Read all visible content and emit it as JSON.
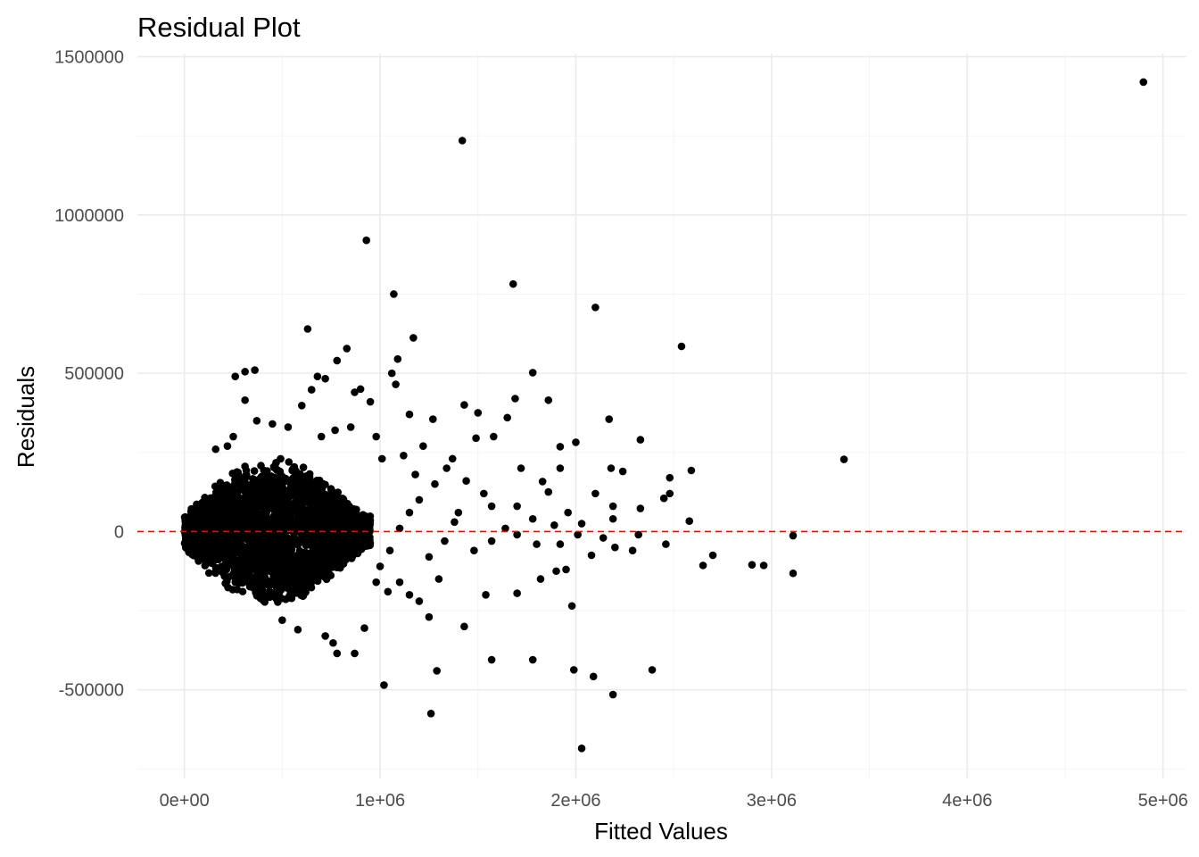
{
  "chart_data": {
    "type": "scatter",
    "title": "Residual Plot",
    "xlabel": "Fitted Values",
    "ylabel": "Residuals",
    "xlim": [
      -240000,
      5120000
    ],
    "ylim": [
      -780000,
      1510000
    ],
    "x_ticks": [
      0,
      1000000,
      2000000,
      3000000,
      4000000,
      5000000
    ],
    "x_tick_labels": [
      "0e+00",
      "1e+06",
      "2e+06",
      "3e+06",
      "4e+06",
      "5e+06"
    ],
    "y_ticks": [
      -500000,
      0,
      500000,
      1000000,
      1500000
    ],
    "y_tick_labels": [
      "-500000",
      "0",
      "500000",
      "1000000",
      "1500000"
    ],
    "grid": true,
    "point_color": "#000000",
    "reference_line": {
      "y": 0,
      "color": "#ff0000",
      "style": "dashed"
    },
    "dense_cloud": {
      "description_only_for_rendering": false,
      "x_range": [
        0,
        950000
      ],
      "y_range": [
        -230000,
        260000
      ],
      "center": [
        420000,
        0
      ]
    },
    "points": [
      [
        4900000,
        1420000
      ],
      [
        1420000,
        1235000
      ],
      [
        930000,
        920000
      ],
      [
        1070000,
        750000
      ],
      [
        1680000,
        782000
      ],
      [
        2100000,
        708000
      ],
      [
        2540000,
        585000
      ],
      [
        1170000,
        612000
      ],
      [
        630000,
        640000
      ],
      [
        830000,
        578000
      ],
      [
        1090000,
        545000
      ],
      [
        1780000,
        502000
      ],
      [
        1060000,
        500000
      ],
      [
        1080000,
        465000
      ],
      [
        360000,
        510000
      ],
      [
        310000,
        505000
      ],
      [
        260000,
        490000
      ],
      [
        680000,
        490000
      ],
      [
        720000,
        483000
      ],
      [
        780000,
        540000
      ],
      [
        870000,
        440000
      ],
      [
        900000,
        450000
      ],
      [
        650000,
        448000
      ],
      [
        310000,
        415000
      ],
      [
        1430000,
        400000
      ],
      [
        1690000,
        420000
      ],
      [
        1860000,
        415000
      ],
      [
        600000,
        398000
      ],
      [
        1500000,
        375000
      ],
      [
        1650000,
        360000
      ],
      [
        2170000,
        355000
      ],
      [
        1270000,
        355000
      ],
      [
        1150000,
        370000
      ],
      [
        950000,
        410000
      ],
      [
        3370000,
        228000
      ],
      [
        2330000,
        290000
      ],
      [
        2000000,
        282000
      ],
      [
        1920000,
        268000
      ],
      [
        1580000,
        300000
      ],
      [
        1490000,
        295000
      ],
      [
        1340000,
        200000
      ],
      [
        1720000,
        200000
      ],
      [
        1920000,
        200000
      ],
      [
        2180000,
        200000
      ],
      [
        2240000,
        190000
      ],
      [
        2590000,
        193000
      ],
      [
        2480000,
        170000
      ],
      [
        2480000,
        120000
      ],
      [
        2450000,
        105000
      ],
      [
        2330000,
        73000
      ],
      [
        2190000,
        80000
      ],
      [
        2100000,
        120000
      ],
      [
        2190000,
        40000
      ],
      [
        2030000,
        25000
      ],
      [
        1890000,
        20000
      ],
      [
        1780000,
        40000
      ],
      [
        1700000,
        80000
      ],
      [
        1640000,
        10000
      ],
      [
        1960000,
        60000
      ],
      [
        1860000,
        125000
      ],
      [
        1830000,
        158000
      ],
      [
        1570000,
        80000
      ],
      [
        1530000,
        120000
      ],
      [
        1440000,
        160000
      ],
      [
        2580000,
        33000
      ],
      [
        2320000,
        -10000
      ],
      [
        2200000,
        -50000
      ],
      [
        2140000,
        -20000
      ],
      [
        2010000,
        -10000
      ],
      [
        1920000,
        -40000
      ],
      [
        1800000,
        -40000
      ],
      [
        1700000,
        -10000
      ],
      [
        1570000,
        -30000
      ],
      [
        1480000,
        -60000
      ],
      [
        1950000,
        -120000
      ],
      [
        2290000,
        -60000
      ],
      [
        2080000,
        -75000
      ],
      [
        2460000,
        -40000
      ],
      [
        2700000,
        -75000
      ],
      [
        2650000,
        -107000
      ],
      [
        2900000,
        -105000
      ],
      [
        2960000,
        -107000
      ],
      [
        3110000,
        -13000
      ],
      [
        3110000,
        -132000
      ],
      [
        1900000,
        -125000
      ],
      [
        1820000,
        -150000
      ],
      [
        1700000,
        -195000
      ],
      [
        1540000,
        -200000
      ],
      [
        1430000,
        -300000
      ],
      [
        1250000,
        -270000
      ],
      [
        1200000,
        -220000
      ],
      [
        1980000,
        -235000
      ],
      [
        1040000,
        -190000
      ],
      [
        1780000,
        -405000
      ],
      [
        1570000,
        -405000
      ],
      [
        1990000,
        -437000
      ],
      [
        2390000,
        -437000
      ],
      [
        2090000,
        -458000
      ],
      [
        1290000,
        -440000
      ],
      [
        1020000,
        -485000
      ],
      [
        2190000,
        -515000
      ],
      [
        1260000,
        -575000
      ],
      [
        2030000,
        -685000
      ],
      [
        920000,
        -305000
      ],
      [
        870000,
        -385000
      ],
      [
        780000,
        -385000
      ],
      [
        760000,
        -352000
      ],
      [
        720000,
        -330000
      ],
      [
        580000,
        -310000
      ],
      [
        500000,
        -280000
      ],
      [
        1100000,
        -160000
      ],
      [
        1300000,
        -150000
      ],
      [
        1120000,
        240000
      ],
      [
        1220000,
        270000
      ],
      [
        1370000,
        230000
      ],
      [
        1180000,
        180000
      ],
      [
        1280000,
        150000
      ],
      [
        1010000,
        230000
      ],
      [
        980000,
        300000
      ],
      [
        850000,
        330000
      ],
      [
        770000,
        320000
      ],
      [
        700000,
        300000
      ],
      [
        530000,
        330000
      ],
      [
        450000,
        340000
      ],
      [
        370000,
        350000
      ],
      [
        250000,
        300000
      ],
      [
        220000,
        270000
      ],
      [
        160000,
        260000
      ],
      [
        1400000,
        60000
      ],
      [
        1380000,
        30000
      ],
      [
        1330000,
        -30000
      ],
      [
        1250000,
        -80000
      ],
      [
        1200000,
        100000
      ],
      [
        1150000,
        60000
      ],
      [
        1100000,
        10000
      ],
      [
        1050000,
        -60000
      ],
      [
        1000000,
        -110000
      ],
      [
        980000,
        -160000
      ],
      [
        1150000,
        -200000
      ]
    ]
  }
}
